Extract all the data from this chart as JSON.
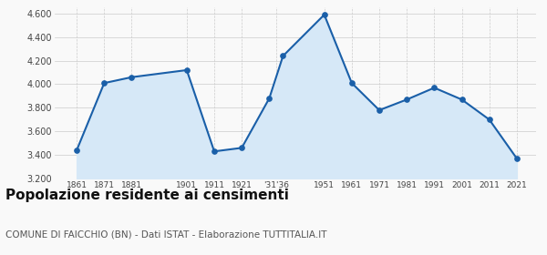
{
  "years": [
    1861,
    1871,
    1881,
    1901,
    1911,
    1921,
    1931,
    1936,
    1951,
    1961,
    1971,
    1981,
    1991,
    2001,
    2011,
    2021
  ],
  "values": [
    3440,
    4010,
    4060,
    4120,
    3430,
    3460,
    3880,
    4240,
    4590,
    4010,
    3780,
    3870,
    3970,
    3870,
    3700,
    3370
  ],
  "ylim": [
    3200,
    4650
  ],
  "yticks": [
    3200,
    3400,
    3600,
    3800,
    4000,
    4200,
    4400,
    4600
  ],
  "xlim": [
    1853,
    2028
  ],
  "line_color": "#1a5fa8",
  "fill_color": "#d6e8f7",
  "marker_color": "#1a5fa8",
  "grid_color": "#cccccc",
  "bg_color": "#f9f9f9",
  "title": "Popolazione residente ai censimenti",
  "subtitle": "COMUNE DI FAICCHIO (BN) - Dati ISTAT - Elaborazione TUTTITALIA.IT",
  "title_fontsize": 11,
  "subtitle_fontsize": 7.5
}
